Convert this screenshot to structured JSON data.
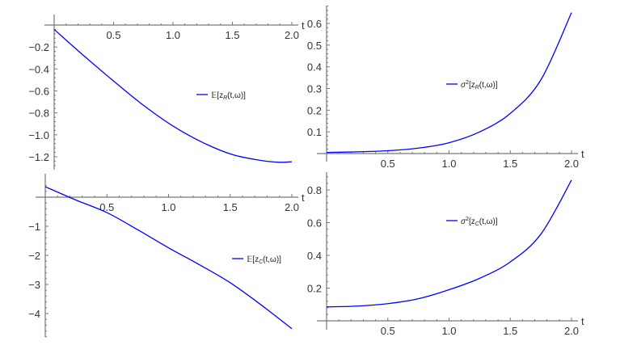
{
  "chart_data": [
    {
      "type": "line",
      "xlabel": "t",
      "xlim": [
        0,
        2.0
      ],
      "ylim": [
        -1.3,
        0
      ],
      "x_ticks": [
        "0.5",
        "1.0",
        "1.5",
        "2.0"
      ],
      "y_ticks": [
        "-0.2",
        "-0.4",
        "-0.6",
        "-0.8",
        "-1.0",
        "-1.2"
      ],
      "legend": {
        "pre": "𝔼[z",
        "sup": "",
        "sub": "R",
        "tail": "(t,ω)]"
      },
      "legend_placement": "center-right",
      "color": "#0000ff",
      "x": [
        0,
        0.25,
        0.5,
        0.75,
        1.0,
        1.25,
        1.5,
        1.75,
        1.9,
        2.0
      ],
      "y": [
        -0.04,
        -0.28,
        -0.51,
        -0.73,
        -0.92,
        -1.07,
        -1.18,
        -1.235,
        -1.25,
        -1.245
      ]
    },
    {
      "type": "line",
      "xlabel": "t",
      "xlim": [
        0,
        2.0
      ],
      "ylim": [
        0,
        0.68
      ],
      "x_ticks": [
        "0.5",
        "1.0",
        "1.5",
        "2.0"
      ],
      "y_ticks": [
        "0.1",
        "0.2",
        "0.3",
        "0.4",
        "0.5",
        "0.6"
      ],
      "legend": {
        "pre": "σ",
        "sup": "2",
        "sub": "R",
        "tail": "(t,ω)]"
      },
      "legend_placement": "center-right",
      "color": "#0000ff",
      "x": [
        0,
        0.25,
        0.5,
        0.75,
        1.0,
        1.25,
        1.5,
        1.75,
        2.0
      ],
      "y": [
        0.005,
        0.008,
        0.013,
        0.025,
        0.05,
        0.1,
        0.185,
        0.34,
        0.65
      ]
    },
    {
      "type": "line",
      "xlabel": "t",
      "xlim": [
        0,
        2.0
      ],
      "ylim": [
        -4.8,
        0.5
      ],
      "x_ticks": [
        "0.5",
        "1.0",
        "1.5",
        "2.0"
      ],
      "y_ticks": [
        "-1",
        "-2",
        "-3",
        "-4"
      ],
      "legend": {
        "pre": "𝔼[z",
        "sup": "",
        "sub": "C",
        "tail": "(t,ω)]"
      },
      "legend_placement": "center-right",
      "color": "#0000ff",
      "x": [
        0,
        0.25,
        0.5,
        0.75,
        1.0,
        1.25,
        1.5,
        1.75,
        2.0
      ],
      "y": [
        0.36,
        -0.1,
        -0.53,
        -1.12,
        -1.74,
        -2.32,
        -2.94,
        -3.7,
        -4.52
      ]
    },
    {
      "type": "line",
      "xlabel": "t",
      "xlim": [
        0,
        2.0
      ],
      "ylim": [
        0,
        0.9
      ],
      "x_ticks": [
        "0.5",
        "1.0",
        "1.5",
        "2.0"
      ],
      "y_ticks": [
        "0.2",
        "0.4",
        "0.6",
        "0.8"
      ],
      "legend": {
        "pre": "σ",
        "sup": "2",
        "sub": "C",
        "tail": "(t,ω)]"
      },
      "legend_placement": "top-center",
      "color": "#0000ff",
      "x": [
        0,
        0.25,
        0.5,
        0.75,
        1.0,
        1.25,
        1.5,
        1.75,
        2.0
      ],
      "y": [
        0.085,
        0.09,
        0.105,
        0.135,
        0.19,
        0.26,
        0.36,
        0.53,
        0.86
      ]
    }
  ]
}
